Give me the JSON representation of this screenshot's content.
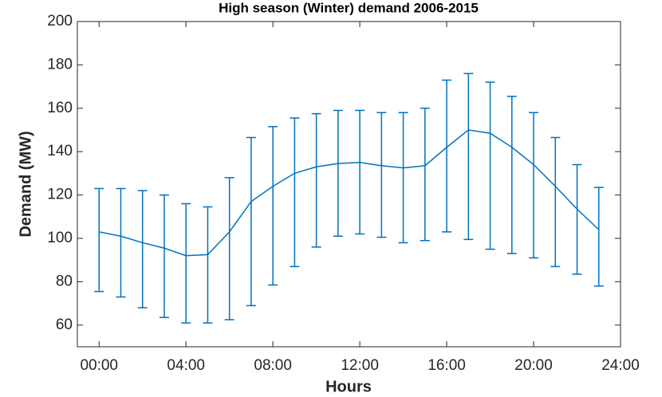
{
  "chart_data": {
    "type": "errorbar",
    "title": "High season (Winter) demand 2006-2015",
    "xlabel": "Hours",
    "ylabel": "Demand (MW)",
    "x": [
      0,
      1,
      2,
      3,
      4,
      5,
      6,
      7,
      8,
      9,
      10,
      11,
      12,
      13,
      14,
      15,
      16,
      17,
      18,
      19,
      20,
      21,
      22,
      23
    ],
    "series": [
      {
        "color": "#0072bd",
        "values": [
          103,
          101,
          98,
          95.5,
          92,
          92.5,
          103,
          117,
          124,
          130,
          133,
          134.5,
          135,
          133.5,
          132.5,
          133.5,
          142,
          150,
          148.5,
          142,
          134,
          124,
          113.5,
          104
        ],
        "errors_lower": [
          27.5,
          28,
          30,
          32,
          31,
          31.5,
          40.5,
          48,
          45.5,
          43,
          37,
          33.5,
          33,
          33,
          34.5,
          34.5,
          39,
          50.5,
          53.5,
          49,
          43,
          37,
          30,
          26
        ],
        "errors_upper": [
          20,
          22,
          24,
          24.5,
          24,
          22,
          25,
          29.5,
          27.5,
          25.5,
          24.5,
          24.5,
          24,
          24.5,
          25.5,
          26.5,
          31,
          26,
          23.5,
          23.5,
          24,
          22.5,
          20.5,
          19.5
        ]
      }
    ],
    "xlim": [
      -1,
      24
    ],
    "xticks": [
      {
        "value": 0,
        "label": "00:00"
      },
      {
        "value": 4,
        "label": "04:00"
      },
      {
        "value": 8,
        "label": "08:00"
      },
      {
        "value": 12,
        "label": "12:00"
      },
      {
        "value": 16,
        "label": "16:00"
      },
      {
        "value": 20,
        "label": "20:00"
      },
      {
        "value": 24,
        "label": "24:00"
      }
    ],
    "ylim": [
      50,
      200
    ],
    "yticks": [
      60,
      80,
      100,
      120,
      140,
      160,
      180,
      200
    ],
    "grid": false
  }
}
